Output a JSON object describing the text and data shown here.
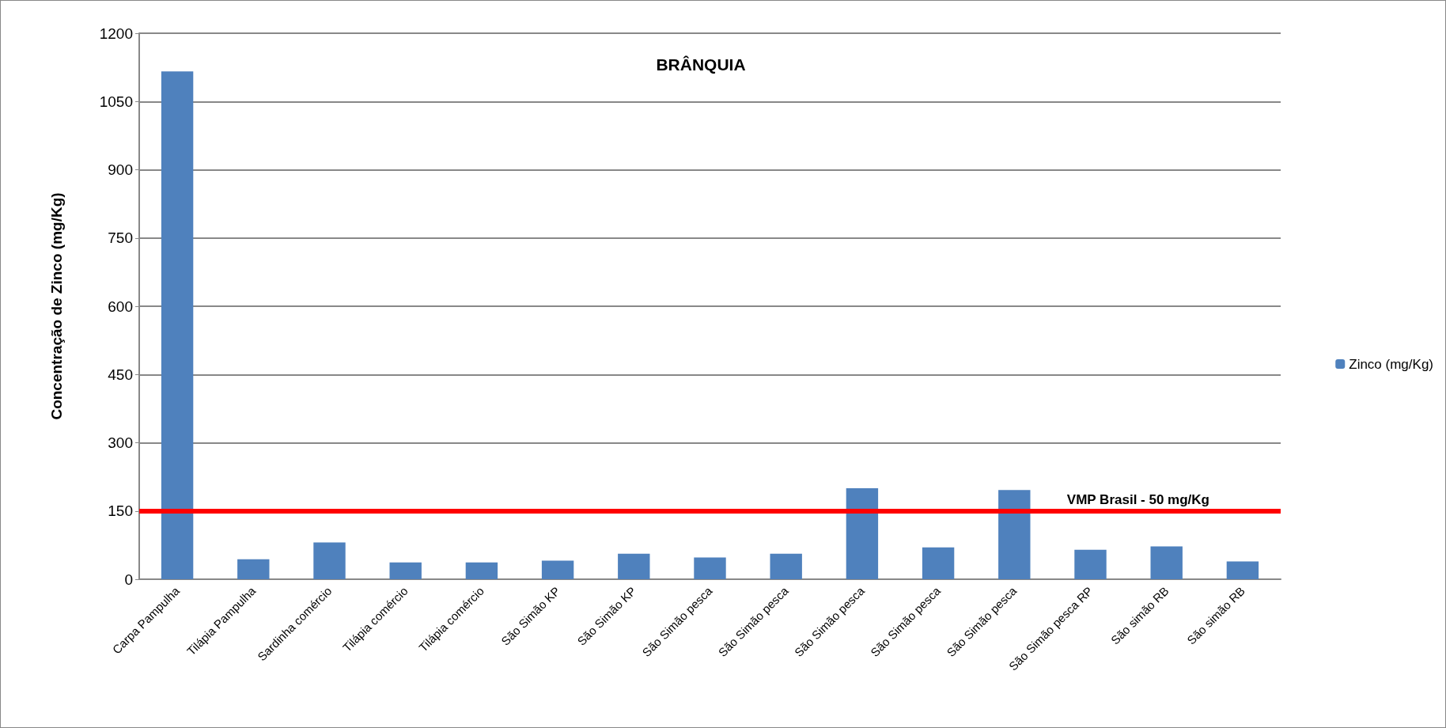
{
  "chart_data": {
    "type": "bar",
    "title": "BRÂNQUIA",
    "ylabel": "Concentração de Zinco (mg/Kg)",
    "categories": [
      "Carpa Pampulha",
      "Tilápia Pampulha",
      "Sardinha comércio",
      "Tilápia comércio",
      "Tilápia comércio",
      "São Simão KP",
      "São Simão KP",
      "São Simão pesca",
      "São Simão pesca",
      "São Simão pesca",
      "São Simão pesca",
      "São Simão pesca",
      "São Simão pesca RP",
      "São simão RB",
      "São simão RB"
    ],
    "series": [
      {
        "name": "Zinco (mg/Kg)",
        "color": "#4f81bd",
        "values": [
          1116,
          44,
          81,
          37,
          37,
          41,
          56,
          48,
          56,
          200,
          70,
          196,
          65,
          72,
          39
        ]
      }
    ],
    "ylim": [
      0,
      1200
    ],
    "yticks": [
      0,
      150,
      300,
      450,
      600,
      750,
      900,
      1050,
      1200
    ],
    "grid": "y",
    "legend": "right",
    "ref_lines": [
      {
        "axis": "y",
        "value": 150,
        "label": "VMP Brasil - 50 mg/Kg",
        "color": "#ff0000"
      }
    ]
  }
}
